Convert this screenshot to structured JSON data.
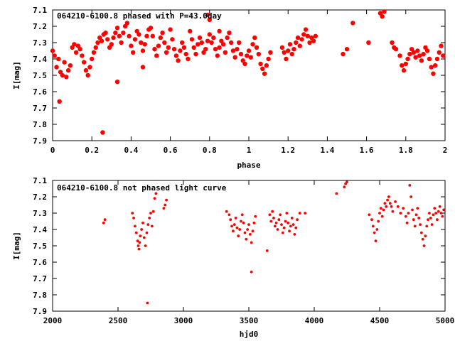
{
  "colors": {
    "points": "#ff0000",
    "axis": "#000000",
    "background": "#ffffff"
  },
  "chart_data": [
    {
      "type": "scatter",
      "title": "064210-6100.8 phased with P=43.0day",
      "xlabel": "phase",
      "ylabel": "I[mag]",
      "xlim": [
        0,
        2
      ],
      "ylim": [
        7.9,
        7.1
      ],
      "y_axis_inverted": true,
      "grid": false,
      "x_ticks": [
        "0",
        "0.2",
        "0.4",
        "0.6",
        "0.8",
        "1",
        "1.2",
        "1.4",
        "1.6",
        "1.8",
        "2"
      ],
      "y_ticks": [
        "7.1",
        "7.2",
        "7.3",
        "7.4",
        "7.5",
        "7.6",
        "7.7",
        "7.8",
        "7.9"
      ],
      "marker": "filled-circle-large",
      "points": [
        [
          0.0,
          7.35
        ],
        [
          0.01,
          7.38
        ],
        [
          0.02,
          7.45
        ],
        [
          0.03,
          7.4
        ],
        [
          0.04,
          7.48
        ],
        [
          0.05,
          7.5
        ],
        [
          0.06,
          7.42
        ],
        [
          0.07,
          7.51
        ],
        [
          0.08,
          7.47
        ],
        [
          0.09,
          7.44
        ],
        [
          0.1,
          7.33
        ],
        [
          0.11,
          7.31
        ],
        [
          0.12,
          7.36
        ],
        [
          0.13,
          7.32
        ],
        [
          0.14,
          7.34
        ],
        [
          0.15,
          7.38
        ],
        [
          0.16,
          7.42
        ],
        [
          0.17,
          7.47
        ],
        [
          0.18,
          7.5
        ],
        [
          0.19,
          7.45
        ],
        [
          0.2,
          7.4
        ],
        [
          0.21,
          7.36
        ],
        [
          0.22,
          7.33
        ],
        [
          0.23,
          7.3
        ],
        [
          0.24,
          7.27
        ],
        [
          0.25,
          7.29
        ],
        [
          0.26,
          7.25
        ],
        [
          0.27,
          7.24
        ],
        [
          0.28,
          7.28
        ],
        [
          0.29,
          7.33
        ],
        [
          0.3,
          7.31
        ],
        [
          0.31,
          7.27
        ],
        [
          0.32,
          7.24
        ],
        [
          0.33,
          7.21
        ],
        [
          0.34,
          7.26
        ],
        [
          0.35,
          7.3
        ],
        [
          0.36,
          7.24
        ],
        [
          0.37,
          7.2
        ],
        [
          0.38,
          7.18
        ],
        [
          0.39,
          7.26
        ],
        [
          0.4,
          7.32
        ],
        [
          0.41,
          7.36
        ],
        [
          0.42,
          7.28
        ],
        [
          0.43,
          7.23
        ],
        [
          0.44,
          7.25
        ],
        [
          0.45,
          7.3
        ],
        [
          0.46,
          7.35
        ],
        [
          0.47,
          7.31
        ],
        [
          0.48,
          7.26
        ],
        [
          0.49,
          7.22
        ],
        [
          0.5,
          7.21
        ],
        [
          0.51,
          7.26
        ],
        [
          0.52,
          7.34
        ],
        [
          0.53,
          7.38
        ],
        [
          0.54,
          7.32
        ],
        [
          0.55,
          7.27
        ],
        [
          0.56,
          7.24
        ],
        [
          0.57,
          7.3
        ],
        [
          0.58,
          7.36
        ],
        [
          0.59,
          7.33
        ],
        [
          0.6,
          7.22
        ],
        [
          0.61,
          7.28
        ],
        [
          0.62,
          7.34
        ],
        [
          0.63,
          7.38
        ],
        [
          0.64,
          7.41
        ],
        [
          0.65,
          7.35
        ],
        [
          0.66,
          7.3
        ],
        [
          0.67,
          7.33
        ],
        [
          0.68,
          7.37
        ],
        [
          0.69,
          7.4
        ],
        [
          0.7,
          7.23
        ],
        [
          0.71,
          7.28
        ],
        [
          0.72,
          7.33
        ],
        [
          0.73,
          7.37
        ],
        [
          0.74,
          7.31
        ],
        [
          0.75,
          7.27
        ],
        [
          0.76,
          7.3
        ],
        [
          0.77,
          7.36
        ],
        [
          0.78,
          7.34
        ],
        [
          0.79,
          7.29
        ],
        [
          0.8,
          7.25
        ],
        [
          0.81,
          7.3
        ],
        [
          0.82,
          7.27
        ],
        [
          0.83,
          7.34
        ],
        [
          0.84,
          7.38
        ],
        [
          0.85,
          7.33
        ],
        [
          0.86,
          7.29
        ],
        [
          0.87,
          7.31
        ],
        [
          0.88,
          7.36
        ],
        [
          0.89,
          7.27
        ],
        [
          0.9,
          7.24
        ],
        [
          0.91,
          7.3
        ],
        [
          0.92,
          7.35
        ],
        [
          0.93,
          7.39
        ],
        [
          0.94,
          7.34
        ],
        [
          0.95,
          7.3
        ],
        [
          0.96,
          7.37
        ],
        [
          0.97,
          7.41
        ],
        [
          0.98,
          7.43
        ],
        [
          0.99,
          7.38
        ],
        [
          1.0,
          7.35
        ],
        [
          1.01,
          7.39
        ],
        [
          1.02,
          7.31
        ],
        [
          1.03,
          7.27
        ],
        [
          1.04,
          7.33
        ],
        [
          1.05,
          7.37
        ],
        [
          1.06,
          7.43
        ],
        [
          1.07,
          7.46
        ],
        [
          1.08,
          7.49
        ],
        [
          1.09,
          7.44
        ],
        [
          1.1,
          7.4
        ],
        [
          1.11,
          7.36
        ],
        [
          1.17,
          7.33
        ],
        [
          1.18,
          7.36
        ],
        [
          1.19,
          7.4
        ],
        [
          1.2,
          7.35
        ],
        [
          1.21,
          7.31
        ],
        [
          1.22,
          7.37
        ],
        [
          1.23,
          7.34
        ],
        [
          1.24,
          7.3
        ],
        [
          1.25,
          7.27
        ],
        [
          1.26,
          7.32
        ],
        [
          1.27,
          7.28
        ],
        [
          1.28,
          7.25
        ],
        [
          1.29,
          7.22
        ],
        [
          1.3,
          7.26
        ],
        [
          1.31,
          7.3
        ],
        [
          1.32,
          7.27
        ],
        [
          1.33,
          7.29
        ],
        [
          1.34,
          7.26
        ],
        [
          1.48,
          7.37
        ],
        [
          1.5,
          7.34
        ],
        [
          1.53,
          7.18
        ],
        [
          1.61,
          7.3
        ],
        [
          1.67,
          7.12
        ],
        [
          1.68,
          7.14
        ],
        [
          1.69,
          7.11
        ],
        [
          1.73,
          7.3
        ],
        [
          1.74,
          7.33
        ],
        [
          1.75,
          7.34
        ],
        [
          1.77,
          7.38
        ],
        [
          1.78,
          7.44
        ],
        [
          1.79,
          7.47
        ],
        [
          1.8,
          7.43
        ],
        [
          1.81,
          7.4
        ],
        [
          1.82,
          7.37
        ],
        [
          1.83,
          7.34
        ],
        [
          1.84,
          7.36
        ],
        [
          1.85,
          7.39
        ],
        [
          1.86,
          7.35
        ],
        [
          1.87,
          7.38
        ],
        [
          1.88,
          7.41
        ],
        [
          1.89,
          7.37
        ],
        [
          1.9,
          7.33
        ],
        [
          1.91,
          7.35
        ],
        [
          1.92,
          7.4
        ],
        [
          1.93,
          7.45
        ],
        [
          1.94,
          7.49
        ],
        [
          1.95,
          7.44
        ],
        [
          1.96,
          7.4
        ],
        [
          1.97,
          7.36
        ],
        [
          1.98,
          7.32
        ],
        [
          1.99,
          7.38
        ],
        [
          0.035,
          7.66
        ],
        [
          0.255,
          7.85
        ],
        [
          0.33,
          7.54
        ],
        [
          0.46,
          7.45
        ],
        [
          0.79,
          7.13
        ],
        [
          0.8,
          7.16
        ],
        [
          0.85,
          7.23
        ]
      ]
    },
    {
      "type": "scatter",
      "title": "064210-6100.8 not phased light curve",
      "xlabel": "hjd0",
      "ylabel": "I[mag]",
      "xlim": [
        2000,
        5000
      ],
      "ylim": [
        7.9,
        7.1
      ],
      "y_axis_inverted": true,
      "grid": false,
      "x_ticks": [
        "2000",
        "2500",
        "3000",
        "3500",
        "4000",
        "4500",
        "5000"
      ],
      "y_ticks": [
        "7.1",
        "7.2",
        "7.3",
        "7.4",
        "7.5",
        "7.6",
        "7.7",
        "7.8",
        "7.9"
      ],
      "marker": "filled-circle-small",
      "points": [
        [
          2390,
          7.36
        ],
        [
          2400,
          7.34
        ],
        [
          2610,
          7.3
        ],
        [
          2620,
          7.33
        ],
        [
          2630,
          7.38
        ],
        [
          2640,
          7.42
        ],
        [
          2650,
          7.47
        ],
        [
          2655,
          7.5
        ],
        [
          2660,
          7.52
        ],
        [
          2665,
          7.48
        ],
        [
          2670,
          7.44
        ],
        [
          2680,
          7.4
        ],
        [
          2690,
          7.36
        ],
        [
          2700,
          7.45
        ],
        [
          2710,
          7.5
        ],
        [
          2720,
          7.42
        ],
        [
          2730,
          7.37
        ],
        [
          2740,
          7.33
        ],
        [
          2750,
          7.3
        ],
        [
          2760,
          7.38
        ],
        [
          2770,
          7.29
        ],
        [
          2780,
          7.21
        ],
        [
          2790,
          7.18
        ],
        [
          2850,
          7.27
        ],
        [
          2860,
          7.25
        ],
        [
          2870,
          7.22
        ],
        [
          2725,
          7.85
        ],
        [
          3330,
          7.29
        ],
        [
          3350,
          7.31
        ],
        [
          3360,
          7.34
        ],
        [
          3370,
          7.38
        ],
        [
          3380,
          7.41
        ],
        [
          3390,
          7.37
        ],
        [
          3400,
          7.33
        ],
        [
          3410,
          7.39
        ],
        [
          3420,
          7.44
        ],
        [
          3430,
          7.4
        ],
        [
          3440,
          7.35
        ],
        [
          3450,
          7.31
        ],
        [
          3460,
          7.36
        ],
        [
          3470,
          7.42
        ],
        [
          3480,
          7.46
        ],
        [
          3490,
          7.4
        ],
        [
          3500,
          7.37
        ],
        [
          3510,
          7.43
        ],
        [
          3520,
          7.48
        ],
        [
          3530,
          7.41
        ],
        [
          3540,
          7.36
        ],
        [
          3550,
          7.32
        ],
        [
          3520,
          7.66
        ],
        [
          3640,
          7.53
        ],
        [
          3660,
          7.31
        ],
        [
          3670,
          7.35
        ],
        [
          3680,
          7.29
        ],
        [
          3690,
          7.33
        ],
        [
          3700,
          7.38
        ],
        [
          3710,
          7.36
        ],
        [
          3720,
          7.4
        ],
        [
          3730,
          7.34
        ],
        [
          3740,
          7.31
        ],
        [
          3750,
          7.37
        ],
        [
          3760,
          7.42
        ],
        [
          3770,
          7.39
        ],
        [
          3780,
          7.35
        ],
        [
          3790,
          7.3
        ],
        [
          3800,
          7.36
        ],
        [
          3810,
          7.41
        ],
        [
          3820,
          7.38
        ],
        [
          3830,
          7.33
        ],
        [
          3840,
          7.37
        ],
        [
          3850,
          7.43
        ],
        [
          3860,
          7.39
        ],
        [
          3870,
          7.34
        ],
        [
          3890,
          7.3
        ],
        [
          3930,
          7.3
        ],
        [
          4170,
          7.18
        ],
        [
          4230,
          7.14
        ],
        [
          4240,
          7.12
        ],
        [
          4250,
          7.11
        ],
        [
          4420,
          7.31
        ],
        [
          4440,
          7.34
        ],
        [
          4450,
          7.38
        ],
        [
          4460,
          7.42
        ],
        [
          4470,
          7.47
        ],
        [
          4480,
          7.4
        ],
        [
          4490,
          7.35
        ],
        [
          4500,
          7.3
        ],
        [
          4510,
          7.27
        ],
        [
          4520,
          7.32
        ],
        [
          4530,
          7.28
        ],
        [
          4540,
          7.24
        ],
        [
          4550,
          7.26
        ],
        [
          4560,
          7.22
        ],
        [
          4570,
          7.2
        ],
        [
          4580,
          7.24
        ],
        [
          4590,
          7.26
        ],
        [
          4600,
          7.29
        ],
        [
          4620,
          7.23
        ],
        [
          4640,
          7.26
        ],
        [
          4660,
          7.3
        ],
        [
          4680,
          7.27
        ],
        [
          4700,
          7.32
        ],
        [
          4710,
          7.36
        ],
        [
          4720,
          7.3
        ],
        [
          4730,
          7.13
        ],
        [
          4740,
          7.2
        ],
        [
          4750,
          7.28
        ],
        [
          4760,
          7.34
        ],
        [
          4770,
          7.38
        ],
        [
          4780,
          7.31
        ],
        [
          4790,
          7.27
        ],
        [
          4800,
          7.33
        ],
        [
          4810,
          7.37
        ],
        [
          4820,
          7.42
        ],
        [
          4830,
          7.46
        ],
        [
          4840,
          7.5
        ],
        [
          4850,
          7.44
        ],
        [
          4860,
          7.38
        ],
        [
          4870,
          7.34
        ],
        [
          4880,
          7.3
        ],
        [
          4890,
          7.33
        ],
        [
          4900,
          7.37
        ],
        [
          4910,
          7.31
        ],
        [
          4920,
          7.27
        ],
        [
          4930,
          7.3
        ],
        [
          4940,
          7.34
        ],
        [
          4950,
          7.29
        ],
        [
          4960,
          7.26
        ],
        [
          4970,
          7.3
        ],
        [
          4980,
          7.32
        ],
        [
          4990,
          7.28
        ]
      ]
    }
  ]
}
